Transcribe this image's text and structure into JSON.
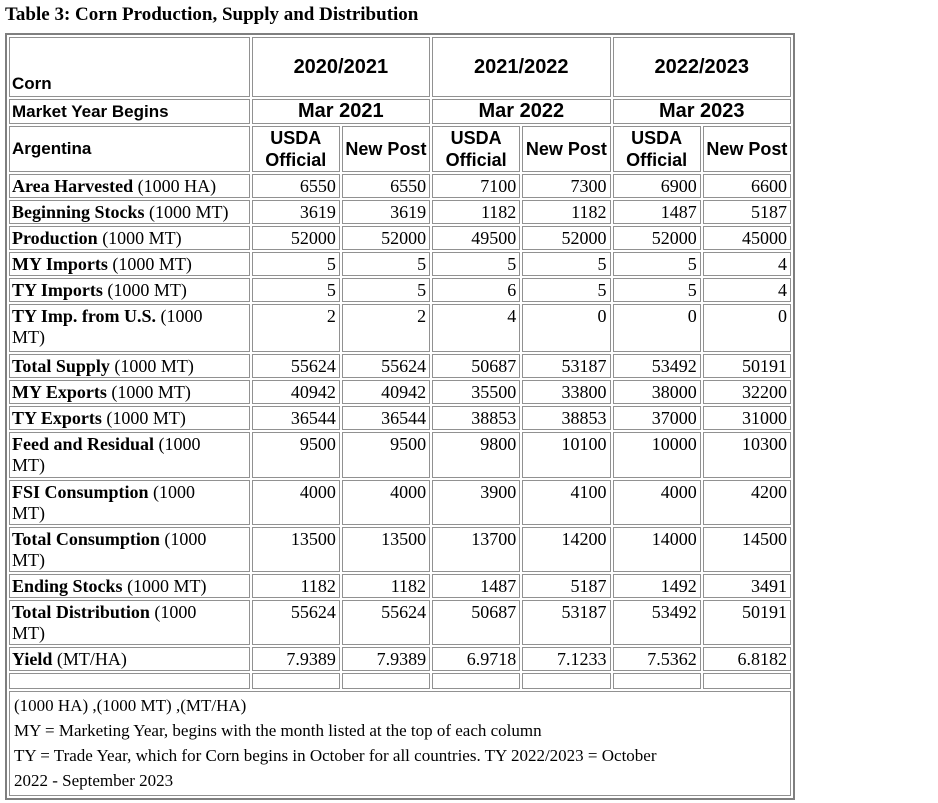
{
  "title": "Table 3: Corn Production, Supply and Distribution",
  "corner": {
    "commodity": "Corn",
    "market_year_begins": "Market Year Begins",
    "country": "Argentina"
  },
  "year_groups": [
    "2020/2021",
    "2021/2022",
    "2022/2023"
  ],
  "market_years": [
    "Mar 2021",
    "Mar 2022",
    "Mar 2023"
  ],
  "source_headers": [
    "USDA Official",
    "New Post"
  ],
  "rows": [
    {
      "label": "Area Harvested",
      "unit": "(1000 HA)",
      "values": [
        "6550",
        "6550",
        "7100",
        "7300",
        "6900",
        "6600"
      ]
    },
    {
      "label": "Beginning Stocks",
      "unit": "(1000 MT)",
      "values": [
        "3619",
        "3619",
        "1182",
        "1182",
        "1487",
        "5187"
      ]
    },
    {
      "label": "Production",
      "unit": "(1000 MT)",
      "values": [
        "52000",
        "52000",
        "49500",
        "52000",
        "52000",
        "45000"
      ]
    },
    {
      "label": "MY Imports",
      "unit": "(1000 MT)",
      "values": [
        "5",
        "5",
        "5",
        "5",
        "5",
        "4"
      ]
    },
    {
      "label": "TY Imports",
      "unit": "(1000 MT)",
      "values": [
        "5",
        "5",
        "6",
        "5",
        "5",
        "4"
      ]
    },
    {
      "label": "TY Imp. from U.S.",
      "unit": "(1000\nMT)",
      "values": [
        "2",
        "2",
        "4",
        "0",
        "0",
        "0"
      ]
    },
    {
      "label": "Total Supply",
      "unit": "(1000 MT)",
      "values": [
        "55624",
        "55624",
        "50687",
        "53187",
        "53492",
        "50191"
      ]
    },
    {
      "label": "MY Exports",
      "unit": "(1000 MT)",
      "values": [
        "40942",
        "40942",
        "35500",
        "33800",
        "38000",
        "32200"
      ]
    },
    {
      "label": "TY Exports",
      "unit": "(1000 MT)",
      "values": [
        "36544",
        "36544",
        "38853",
        "38853",
        "37000",
        "31000"
      ]
    },
    {
      "label": "Feed and Residual",
      "unit": "(1000\nMT)",
      "values": [
        "9500",
        "9500",
        "9800",
        "10100",
        "10000",
        "10300"
      ]
    },
    {
      "label": "FSI Consumption",
      "unit": "(1000\nMT)",
      "values": [
        "4000",
        "4000",
        "3900",
        "4100",
        "4000",
        "4200"
      ]
    },
    {
      "label": "Total Consumption",
      "unit": "(1000\nMT)",
      "values": [
        "13500",
        "13500",
        "13700",
        "14200",
        "14000",
        "14500"
      ]
    },
    {
      "label": "Ending Stocks",
      "unit": "(1000 MT)",
      "values": [
        "1182",
        "1182",
        "1487",
        "5187",
        "1492",
        "3491"
      ]
    },
    {
      "label": "Total Distribution",
      "unit": "(1000\nMT)",
      "values": [
        "55624",
        "55624",
        "50687",
        "53187",
        "53492",
        "50191"
      ]
    },
    {
      "label": "Yield",
      "unit": "(MT/HA)",
      "values": [
        "7.9389",
        "7.9389",
        "6.9718",
        "7.1233",
        "7.5362",
        "6.8182"
      ]
    }
  ],
  "footnotes": [
    "(1000 HA) ,(1000 MT) ,(MT/HA)",
    "MY = Marketing Year, begins with the month listed at the top of each column",
    "TY = Trade Year, which for Corn begins in October for all countries. TY 2022/2023 = October\n2022 - September 2023"
  ],
  "colors": {
    "text": "#000000",
    "grid_border": "#919191",
    "outer_border": "#7f7f7f",
    "background": "#ffffff"
  }
}
